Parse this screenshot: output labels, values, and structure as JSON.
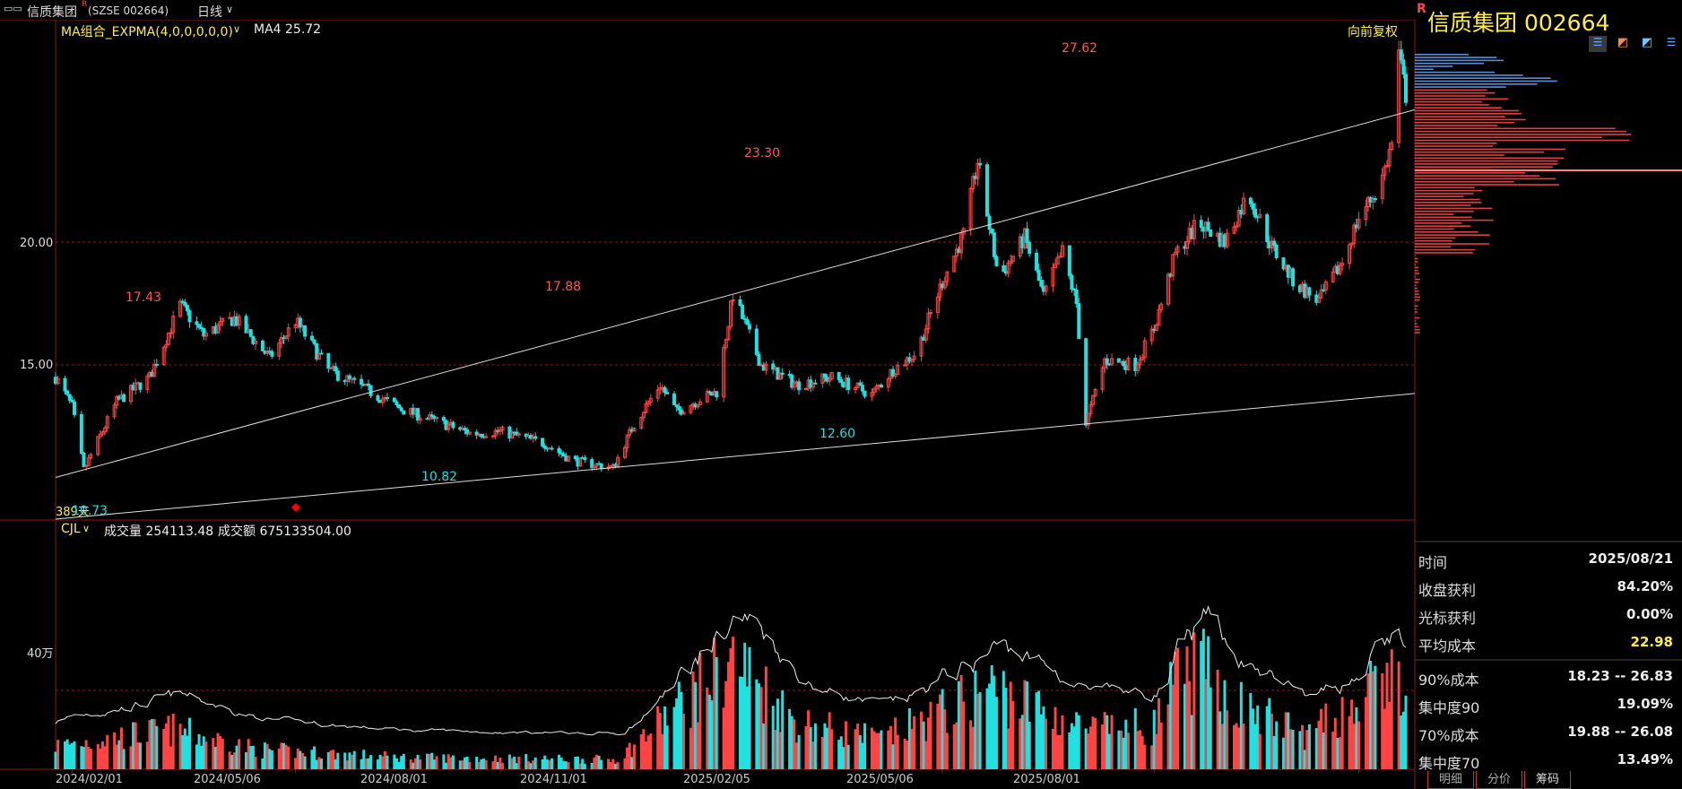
{
  "header": {
    "window_icon": "window-restore-icon",
    "stock_name": "信质集团",
    "mark": "R",
    "code_text": "(SZSE 002664)",
    "period_label": "日线"
  },
  "main_panel": {
    "indicator_label": "MA组合_EXPMA(4,0,0,0,0,0)",
    "ma4_label": "MA4 25.72",
    "adjust_label": "向前复权",
    "y_ticks": [
      "20.00",
      "15.00"
    ],
    "corner_label": "389天",
    "marker_color": "#ff0000"
  },
  "volume_panel": {
    "indicator_label": "CJL",
    "volume_label": "成交量 254113.48",
    "amount_label": "成交额 675133504.00",
    "y_tick": "40万"
  },
  "x_ticks": [
    "2024/02/01",
    "2024/05/06",
    "2024/08/01",
    "2024/11/01",
    "2025/02/05",
    "2025/05/06",
    "2025/08/01"
  ],
  "annotations": [
    {
      "text": "17.43",
      "color": "#ff5555"
    },
    {
      "text": "10.73",
      "color": "#22dddd"
    },
    {
      "text": "10.82",
      "color": "#22dddd"
    },
    {
      "text": "17.88",
      "color": "#ff5555"
    },
    {
      "text": "23.30",
      "color": "#ff5555"
    },
    {
      "text": "12.60",
      "color": "#22dddd"
    },
    {
      "text": "27.62",
      "color": "#ff5555"
    }
  ],
  "colors": {
    "up": "#ff4444",
    "down": "#22e0e0",
    "grid": "#8b1a1a",
    "channel": "#dddddd",
    "accent": "#ffee44"
  },
  "right_panel": {
    "mark": "R",
    "title": "信质集团  002664",
    "toolbar_icons": [
      "chip-distribution-icon",
      "fire-icon",
      "flag-icon",
      "list-icon"
    ],
    "stats_a": [
      {
        "label": "时间",
        "value": "2025/08/21"
      },
      {
        "label": "收盘获利",
        "value": "84.20%"
      },
      {
        "label": "光标获利",
        "value": "0.00%"
      },
      {
        "label": "平均成本",
        "value": "22.98"
      }
    ],
    "stats_b": [
      {
        "label": "90%成本",
        "value": "18.23 -- 26.83"
      },
      {
        "label": "集中度90",
        "value": "19.09%"
      },
      {
        "label": "70%成本",
        "value": "19.88 -- 26.08"
      },
      {
        "label": "集中度70",
        "value": "13.49%"
      }
    ],
    "tabs": [
      "明细",
      "分价",
      "筹码"
    ]
  },
  "chart_data": [
    {
      "type": "candlestick",
      "x_start": "2024/01/25",
      "x_end": "2025/08/21",
      "ylim": [
        10.0,
        28.5
      ],
      "y_ticks": [
        20.0,
        15.0
      ],
      "grid": true,
      "price_path": [
        [
          "2024/01/25",
          14.5
        ],
        [
          "2024/02/01",
          13.3
        ],
        [
          "2024/02/06",
          10.73
        ],
        [
          "2024/02/20",
          13.5
        ],
        [
          "2024/03/05",
          14.5
        ],
        [
          "2024/03/18",
          17.43
        ],
        [
          "2024/03/28",
          16.2
        ],
        [
          "2024/04/10",
          16.9
        ],
        [
          "2024/04/25",
          15.3
        ],
        [
          "2024/05/06",
          16.8
        ],
        [
          "2024/05/20",
          14.8
        ],
        [
          "2024/06/05",
          14.0
        ],
        [
          "2024/06/20",
          13.2
        ],
        [
          "2024/07/05",
          12.7
        ],
        [
          "2024/07/20",
          12.2
        ],
        [
          "2024/08/01",
          12.3
        ],
        [
          "2024/08/20",
          11.8
        ],
        [
          "2024/09/01",
          11.1
        ],
        [
          "2024/09/18",
          10.82
        ],
        [
          "2024/09/27",
          12.6
        ],
        [
          "2024/10/08",
          14.2
        ],
        [
          "2024/10/15",
          13.1
        ],
        [
          "2024/10/25",
          13.6
        ],
        [
          "2024/11/01",
          13.9
        ],
        [
          "2024/11/08",
          17.88
        ],
        [
          "2024/11/20",
          15.0
        ],
        [
          "2024/12/05",
          14.2
        ],
        [
          "2024/12/20",
          14.5
        ],
        [
          "2025/01/06",
          13.8
        ],
        [
          "2025/01/15",
          14.8
        ],
        [
          "2025/01/25",
          15.5
        ],
        [
          "2025/02/05",
          18.4
        ],
        [
          "2025/02/14",
          20.3
        ],
        [
          "2025/02/20",
          23.3
        ],
        [
          "2025/03/01",
          18.5
        ],
        [
          "2025/03/12",
          20.2
        ],
        [
          "2025/03/20",
          17.8
        ],
        [
          "2025/03/28",
          19.6
        ],
        [
          "2025/04/03",
          17.5
        ],
        [
          "2025/04/07",
          12.6
        ],
        [
          "2025/04/15",
          15.2
        ],
        [
          "2025/04/28",
          15.0
        ],
        [
          "2025/05/06",
          16.5
        ],
        [
          "2025/05/15",
          19.5
        ],
        [
          "2025/05/25",
          20.8
        ],
        [
          "2025/06/05",
          20.0
        ],
        [
          "2025/06/15",
          22.0
        ],
        [
          "2025/06/25",
          19.8
        ],
        [
          "2025/07/05",
          18.3
        ],
        [
          "2025/07/15",
          17.6
        ],
        [
          "2025/07/25",
          19.2
        ],
        [
          "2025/08/01",
          21.0
        ],
        [
          "2025/08/10",
          22.3
        ],
        [
          "2025/08/15",
          24.0
        ],
        [
          "2025/08/18",
          27.62
        ],
        [
          "2025/08/21",
          26.0
        ]
      ],
      "channel_lines": [
        [
          [
            "2024/02/06",
            10.73
          ],
          [
            "2024/11/08",
            17.88
          ]
        ],
        [
          [
            "2024/09/18",
            10.82
          ],
          [
            "2025/04/07",
            12.6
          ]
        ]
      ]
    },
    {
      "type": "bar",
      "series": [
        {
          "values": "volume per trading day"
        }
      ],
      "ylim": [
        0,
        1200000
      ],
      "y_ticks": [
        400000
      ],
      "volume_path": [
        [
          "2024/01/25",
          120000
        ],
        [
          "2024/03/15",
          200000
        ],
        [
          "2024/04/20",
          100000
        ],
        [
          "2024/06/20",
          60000
        ],
        [
          "2024/09/20",
          50000
        ],
        [
          "2024/10/08",
          240000
        ],
        [
          "2024/11/08",
          560000
        ],
        [
          "2024/12/05",
          240000
        ],
        [
          "2025/01/10",
          150000
        ],
        [
          "2025/02/14",
          340000
        ],
        [
          "2025/02/25",
          420000
        ],
        [
          "2025/03/15",
          320000
        ],
        [
          "2025/04/07",
          200000
        ],
        [
          "2025/05/06",
          220000
        ],
        [
          "2025/05/15",
          430000
        ],
        [
          "2025/05/25",
          520000
        ],
        [
          "2025/06/10",
          330000
        ],
        [
          "2025/07/10",
          170000
        ],
        [
          "2025/08/01",
          340000
        ],
        [
          "2025/08/18",
          490000
        ],
        [
          "2025/08/21",
          280000
        ]
      ]
    }
  ]
}
